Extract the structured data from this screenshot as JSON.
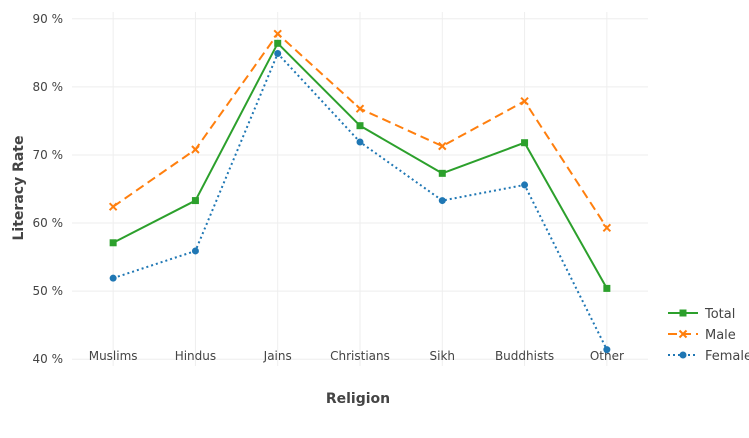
{
  "chart_data": {
    "type": "line",
    "title": "",
    "xlabel": "Religion",
    "ylabel": "Literacy Rate",
    "categories": [
      "Muslims",
      "Hindus",
      "Jains",
      "Christians",
      "Sikh",
      "Buddhists",
      "Other"
    ],
    "ylim": [
      39,
      91
    ],
    "yticks": [
      40,
      50,
      60,
      70,
      80,
      90
    ],
    "ytick_labels": [
      "40 %",
      "50 %",
      "60 %",
      "70 %",
      "80 %",
      "90 %"
    ],
    "grid": true,
    "legend_position": "right",
    "series": [
      {
        "name": "Total",
        "values": [
          57.1,
          63.3,
          86.4,
          74.3,
          67.3,
          71.8,
          50.4
        ],
        "color": "#2ca02c",
        "marker": "square",
        "dash": "solid"
      },
      {
        "name": "Male",
        "values": [
          62.4,
          70.8,
          87.8,
          76.8,
          71.3,
          77.9,
          59.3
        ],
        "color": "#ff7f0e",
        "marker": "x",
        "dash": "dash"
      },
      {
        "name": "Female",
        "values": [
          51.9,
          55.9,
          84.9,
          71.9,
          63.3,
          65.6,
          41.4
        ],
        "color": "#1f77b4",
        "marker": "circle",
        "dash": "dot"
      }
    ]
  }
}
